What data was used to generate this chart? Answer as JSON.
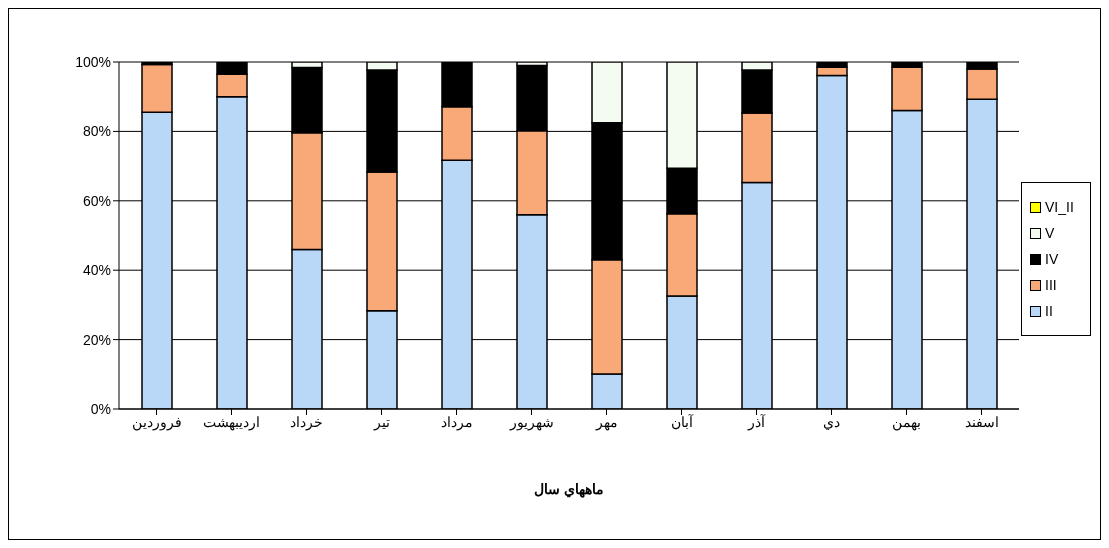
{
  "chart_data": {
    "type": "bar",
    "stacked": true,
    "xlabel": "ماههاي سال",
    "categories": [
      "فروردين",
      "ارديبهشت",
      "خرداد",
      "تير",
      "مرداد",
      "شهريور",
      "مهر",
      "آبان",
      "آذر",
      "دي",
      "بهمن",
      "اسفند"
    ],
    "series": [
      {
        "name": "II",
        "color": "#b9d7f7",
        "values": [
          85.5,
          90,
          46,
          28.3,
          71.7,
          56,
          10.1,
          32.6,
          65.3,
          96.1,
          86,
          89.3
        ]
      },
      {
        "name": "III",
        "color": "#f9a878",
        "values": [
          13.8,
          6.5,
          33.6,
          40,
          15.4,
          24.2,
          32.9,
          23.7,
          20,
          2.4,
          12.5,
          8.7
        ]
      },
      {
        "name": "IV",
        "color": "#000000",
        "values": [
          0.7,
          3.5,
          18.8,
          29.4,
          12.9,
          18.8,
          39.5,
          13.1,
          12.4,
          1.5,
          1.5,
          2
        ]
      },
      {
        "name": "V",
        "color": "#f4fbf0",
        "values": [
          0,
          0,
          1.6,
          2.3,
          0,
          1,
          17.5,
          30.6,
          2.3,
          0,
          0,
          0
        ]
      },
      {
        "name": "VI_II",
        "color": "#ffff00",
        "values": [
          0,
          0,
          0,
          0,
          0,
          0,
          0,
          0,
          0,
          0,
          0,
          0
        ]
      }
    ],
    "ylim": [
      0,
      100
    ],
    "yticks": [
      {
        "value": 0,
        "label": "0%"
      },
      {
        "value": 20,
        "label": "20%"
      },
      {
        "value": 40,
        "label": "40%"
      },
      {
        "value": 60,
        "label": "60%"
      },
      {
        "value": 80,
        "label": "80%"
      },
      {
        "value": 100,
        "label": "100%"
      }
    ],
    "grid": "y",
    "legend": "right"
  }
}
